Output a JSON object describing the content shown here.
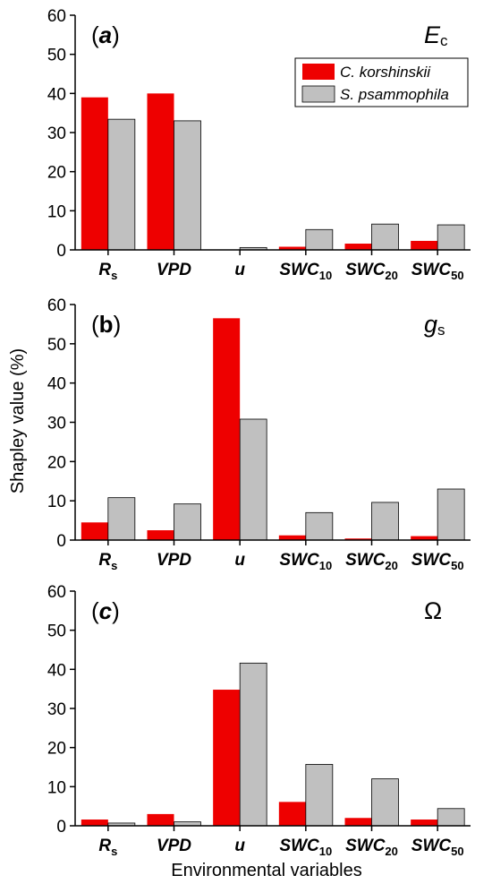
{
  "chart_data": {
    "type": "bar",
    "ylabel": "Shapley value (%)",
    "xlabel": "Environmental variables",
    "legend": {
      "placement": "top-right (panel a)",
      "entries": [
        {
          "name": "C. korshinskii",
          "color": "#ee0000"
        },
        {
          "name": "S. psammophila",
          "color": "#c0c0c0"
        }
      ]
    },
    "categories": [
      {
        "main": "R",
        "sub": "s"
      },
      {
        "main": "VPD",
        "sub": ""
      },
      {
        "main": "u",
        "sub": ""
      },
      {
        "main": "SWC",
        "sub": "10"
      },
      {
        "main": "SWC",
        "sub": "20"
      },
      {
        "main": "SWC",
        "sub": "50"
      }
    ],
    "ylim": [
      0,
      60
    ],
    "yticks": [
      0,
      10,
      20,
      30,
      40,
      50,
      60
    ],
    "grid": false,
    "panels": [
      {
        "label": "a",
        "variable": {
          "main": "E",
          "sub": "c"
        },
        "series": [
          {
            "name": "C. korshinskii",
            "values": [
              39.0,
              40.0,
              0.0,
              0.8,
              1.6,
              2.3
            ]
          },
          {
            "name": "S. psammophila",
            "values": [
              33.4,
              33.0,
              0.6,
              5.2,
              6.6,
              6.4
            ]
          }
        ]
      },
      {
        "label": "b",
        "variable": {
          "main": "g",
          "sub": "s"
        },
        "series": [
          {
            "name": "C. korshinskii",
            "values": [
              4.5,
              2.5,
              56.5,
              1.2,
              0.4,
              1.0
            ]
          },
          {
            "name": "S. psammophila",
            "values": [
              10.8,
              9.2,
              30.8,
              7.0,
              9.6,
              13.0
            ]
          }
        ]
      },
      {
        "label": "c",
        "variable": {
          "main": "Ω",
          "sub": ""
        },
        "series": [
          {
            "name": "C. korshinskii",
            "values": [
              1.6,
              3.0,
              34.8,
              6.1,
              2.0,
              1.6
            ]
          },
          {
            "name": "S. psammophila",
            "values": [
              0.7,
              1.0,
              41.6,
              15.7,
              12.0,
              4.4
            ]
          }
        ]
      }
    ],
    "colors": {
      "series1": "#ee0000",
      "series2": "#c0c0c0",
      "outline": "#000000"
    }
  }
}
